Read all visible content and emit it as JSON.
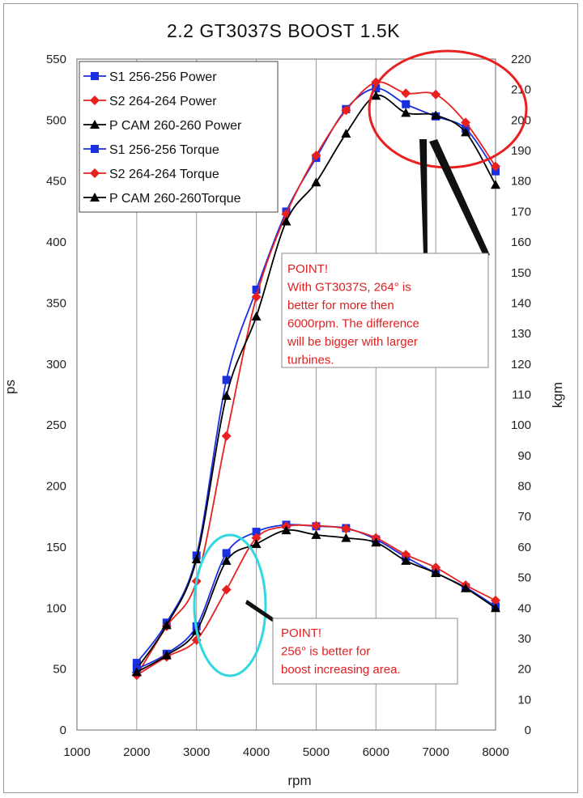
{
  "chart_data": {
    "type": "line",
    "title": "2.2  GT3037S  BOOST  1.5K",
    "xlabel": "rpm",
    "ylabel_left": "ps",
    "ylabel_right": "kgm",
    "x_range": [
      1000,
      8000
    ],
    "y_left_range": [
      0,
      550
    ],
    "y_right_range": [
      0,
      220
    ],
    "x_ticks": [
      "1000",
      "2000",
      "3000",
      "4000",
      "5000",
      "6000",
      "7000",
      "8000"
    ],
    "y_left_ticks": [
      "0",
      "50",
      "100",
      "150",
      "200",
      "250",
      "300",
      "350",
      "400",
      "450",
      "500",
      "550"
    ],
    "y_right_ticks": [
      "0",
      "10",
      "20",
      "30",
      "40",
      "50",
      "60",
      "70",
      "80",
      "90",
      "100",
      "110",
      "120",
      "130",
      "140",
      "150",
      "160",
      "170",
      "180",
      "190",
      "200",
      "210",
      "220"
    ],
    "grid": "vertical",
    "legend_position": "top-left",
    "series": [
      {
        "name": "S1 256-256 Power",
        "axis": "left",
        "color": "#1a2fe0",
        "marker": "square",
        "x": [
          2000,
          2500,
          3000,
          3500,
          4000,
          4500,
          5000,
          5500,
          6000,
          6500,
          7000,
          7500,
          8000
        ],
        "values": [
          55,
          88,
          143,
          287,
          361,
          425,
          469,
          509,
          526,
          513,
          503,
          493,
          458
        ]
      },
      {
        "name": "S2 264-264 Power",
        "axis": "left",
        "color": "#e82020",
        "marker": "diamond",
        "x": [
          2000,
          2500,
          3000,
          3500,
          4000,
          4500,
          5000,
          5500,
          6000,
          6500,
          7000,
          7500,
          8000
        ],
        "values": [
          45,
          85,
          122,
          241,
          355,
          423,
          471,
          508,
          531,
          522,
          521,
          498,
          462
        ]
      },
      {
        "name": "P CAM 260-260 Power",
        "axis": "left",
        "color": "#000000",
        "marker": "triangle",
        "x": [
          2000,
          2500,
          3000,
          3500,
          4000,
          4500,
          5000,
          5500,
          6000,
          6500,
          7000,
          7500,
          8000
        ],
        "values": [
          50,
          86,
          140,
          274,
          339,
          417,
          449,
          489,
          520,
          506,
          504,
          490,
          447
        ]
      },
      {
        "name": "S1 256-256 Torque",
        "axis": "right",
        "color": "#1a2fe0",
        "marker": "square",
        "x": [
          2000,
          2500,
          3000,
          3500,
          4000,
          4500,
          5000,
          5500,
          6000,
          6500,
          7000,
          7500,
          8000
        ],
        "values": [
          20,
          25,
          34,
          58,
          65,
          67.3,
          66.8,
          66.2,
          62.5,
          56.7,
          51.5,
          46.8,
          40.5
        ]
      },
      {
        "name": "S2 264-264 Torque",
        "axis": "right",
        "color": "#e82020",
        "marker": "diamond",
        "x": [
          2000,
          2500,
          3000,
          3500,
          4000,
          4500,
          5000,
          5500,
          6000,
          6500,
          7000,
          7500,
          8000
        ],
        "values": [
          18,
          24,
          29.5,
          46,
          63,
          66.8,
          67,
          66,
          63,
          57.5,
          53.3,
          47.5,
          42.5
        ]
      },
      {
        "name": "P CAM 260-260Torque",
        "axis": "right",
        "color": "#000000",
        "marker": "triangle",
        "x": [
          2000,
          2500,
          3000,
          3500,
          4000,
          4500,
          5000,
          5500,
          6000,
          6500,
          7000,
          7500,
          8000
        ],
        "values": [
          19,
          24.5,
          32.5,
          55.5,
          61,
          65.5,
          64,
          63,
          61.5,
          55.5,
          51.5,
          46.5,
          40
        ]
      }
    ],
    "annotations": [
      {
        "lines": [
          "POINT!",
          "With GT3037S, 264° is",
          "better for more then",
          "6000rpm. The difference",
          "will be bigger with larger",
          "turbines."
        ]
      },
      {
        "lines": [
          "POINT!",
          "256° is better for",
          "boost increasing area."
        ]
      }
    ]
  }
}
